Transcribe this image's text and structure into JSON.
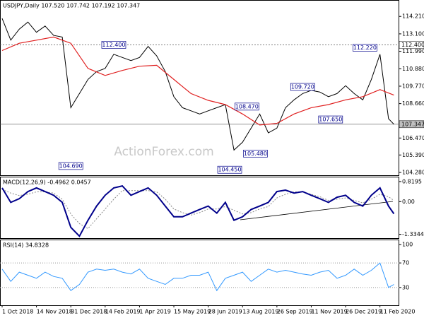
{
  "chart_data": [
    {
      "type": "line",
      "title": "USDJPY,Daily  107.520 107.742 107.192 107.347",
      "watermark": "ActionForex.com",
      "x": [
        0,
        8,
        16,
        24,
        32,
        40,
        48,
        56,
        64,
        72,
        80,
        88,
        96,
        104,
        112,
        120,
        128,
        136,
        144,
        152,
        160,
        168,
        176,
        184,
        192,
        200,
        208,
        216,
        224,
        232,
        240,
        248,
        256,
        264,
        272,
        280,
        288,
        296,
        304,
        312,
        320,
        328,
        336,
        344,
        352,
        360,
        365
      ],
      "xlim": [
        0,
        370
      ],
      "ylim": [
        104.1,
        115.21
      ],
      "yticks": [
        {
          "value": 114.21,
          "label": "114.210"
        },
        {
          "value": 113.1,
          "label": "113.100"
        },
        {
          "value": 111.99,
          "label": "111.990"
        },
        {
          "value": 110.88,
          "label": "110.880"
        },
        {
          "value": 109.77,
          "label": "109.770"
        },
        {
          "value": 108.66,
          "label": "108.660"
        },
        {
          "value": 106.47,
          "label": "106.470"
        },
        {
          "value": 105.39,
          "label": "105.390"
        },
        {
          "value": 104.28,
          "label": "104.280"
        }
      ],
      "hlines": [
        {
          "value": 112.4,
          "label": "112.400",
          "dashed": true
        },
        {
          "value": 107.347,
          "label": "107.347",
          "dashed": false
        }
      ],
      "annotations": [
        {
          "x": 104,
          "value": 112.4,
          "label": "112.400"
        },
        {
          "x": 64,
          "value": 104.69,
          "label": "104.690"
        },
        {
          "x": 228,
          "value": 108.47,
          "label": "108.470"
        },
        {
          "x": 236,
          "value": 105.48,
          "label": "105.480"
        },
        {
          "x": 212,
          "value": 104.45,
          "label": "104.450"
        },
        {
          "x": 280,
          "value": 109.72,
          "label": "109.720"
        },
        {
          "x": 306,
          "value": 107.65,
          "label": "107.650"
        },
        {
          "x": 338,
          "value": 112.22,
          "label": "112.220"
        }
      ],
      "series": [
        {
          "color": "#000000",
          "width": 1,
          "values": [
            114.08,
            112.7,
            113.4,
            113.85,
            113.2,
            113.6,
            113.0,
            112.9,
            108.4,
            109.3,
            110.2,
            110.7,
            110.9,
            111.8,
            111.6,
            111.4,
            111.6,
            112.3,
            111.7,
            110.7,
            109.1,
            108.4,
            108.2,
            108.0,
            108.2,
            108.4,
            108.6,
            105.7,
            106.2,
            107.1,
            108.0,
            106.8,
            107.1,
            108.4,
            108.9,
            109.3,
            109.5,
            109.4,
            109.1,
            109.3,
            109.8,
            109.3,
            108.9,
            110.2,
            111.8,
            107.7,
            107.347
          ]
        },
        {
          "color": "#e02020",
          "width": 1.2,
          "values": [
            112.04,
            null,
            112.5,
            null,
            112.7,
            null,
            112.9,
            null,
            112.5,
            null,
            110.9,
            null,
            110.45,
            null,
            110.77,
            null,
            111.04,
            null,
            111.1,
            null,
            110.2,
            null,
            109.3,
            null,
            108.87,
            null,
            108.6,
            null,
            108.0,
            null,
            107.3,
            null,
            107.4,
            null,
            108.0,
            null,
            108.4,
            null,
            108.6,
            null,
            108.9,
            null,
            109.1,
            null,
            109.55,
            null,
            109.2
          ],
          "connect_gaps": true
        }
      ]
    },
    {
      "type": "line",
      "title": "MACD(12,26,9) -0.4962 0.0457",
      "x": [
        0,
        8,
        16,
        24,
        32,
        40,
        48,
        56,
        64,
        72,
        80,
        88,
        96,
        104,
        112,
        120,
        128,
        136,
        144,
        152,
        160,
        168,
        176,
        184,
        192,
        200,
        208,
        216,
        224,
        232,
        240,
        248,
        256,
        264,
        272,
        280,
        288,
        296,
        304,
        312,
        320,
        328,
        336,
        344,
        352,
        360,
        365
      ],
      "xlim": [
        0,
        370
      ],
      "ylim": [
        -1.49,
        0.99
      ],
      "yticks": [
        {
          "value": 0.8195,
          "label": "0.8195"
        },
        {
          "value": 0,
          "label": "0.00"
        },
        {
          "value": -1.3344,
          "label": "-1.3344"
        }
      ],
      "series": [
        {
          "color": "#888888",
          "width": 1,
          "dashed": true,
          "values": [
            0.5,
            0.35,
            0.25,
            0.3,
            0.4,
            0.4,
            0.35,
            0.1,
            -0.5,
            -0.9,
            -1.1,
            -0.7,
            -0.3,
            0.1,
            0.45,
            0.45,
            0.45,
            0.45,
            0.4,
            0.1,
            -0.3,
            -0.45,
            -0.55,
            -0.45,
            -0.3,
            -0.3,
            -0.2,
            -0.35,
            -0.5,
            -0.45,
            -0.3,
            -0.2,
            0.15,
            0.3,
            0.4,
            0.4,
            0.3,
            0.2,
            0.05,
            0.1,
            0.15,
            0.05,
            -0.05,
            0.1,
            0.3,
            0.2,
            0.0457
          ]
        },
        {
          "color": "#00008b",
          "width": 2,
          "values": [
            0.56,
            -0.03,
            0.12,
            0.41,
            0.56,
            0.41,
            0.26,
            -0.03,
            -1.05,
            -1.41,
            -0.76,
            -0.18,
            0.26,
            0.56,
            0.64,
            0.26,
            0.41,
            0.56,
            0.26,
            -0.18,
            -0.62,
            -0.62,
            -0.47,
            -0.32,
            -0.18,
            -0.47,
            -0.03,
            -0.76,
            -0.62,
            -0.32,
            -0.18,
            -0.03,
            0.41,
            0.47,
            0.35,
            0.41,
            0.26,
            0.12,
            -0.03,
            0.18,
            0.26,
            -0.03,
            -0.18,
            0.26,
            0.56,
            -0.18,
            -0.4962
          ]
        }
      ]
    },
    {
      "type": "line",
      "title": "RSI(14) 34.8328",
      "x": [
        0,
        8,
        16,
        24,
        32,
        40,
        48,
        56,
        64,
        72,
        80,
        88,
        96,
        104,
        112,
        120,
        128,
        136,
        144,
        152,
        160,
        168,
        176,
        184,
        192,
        200,
        208,
        216,
        224,
        232,
        240,
        248,
        256,
        264,
        272,
        280,
        288,
        296,
        304,
        312,
        320,
        328,
        336,
        344,
        352,
        360,
        365
      ],
      "xlim": [
        0,
        370
      ],
      "ylim": [
        1,
        107
      ],
      "yticks": [
        100,
        70,
        30
      ],
      "levels": [
        70,
        30
      ],
      "xticks": [
        {
          "value": 0,
          "label": "1 Oct 2018"
        },
        {
          "value": 32,
          "label": "14 Nov 2018"
        },
        {
          "value": 64,
          "label": "31 Dec 2018"
        },
        {
          "value": 96,
          "label": "14 Feb 2019"
        },
        {
          "value": 128,
          "label": "1 Apr 2019"
        },
        {
          "value": 160,
          "label": "15 May 2019"
        },
        {
          "value": 192,
          "label": "28 Jun 2019"
        },
        {
          "value": 224,
          "label": "13 Aug 2019"
        },
        {
          "value": 256,
          "label": "26 Sep 2019"
        },
        {
          "value": 288,
          "label": "11 Nov 2019"
        },
        {
          "value": 320,
          "label": "26 Dec 2019"
        },
        {
          "value": 352,
          "label": "11 Feb 2020"
        }
      ],
      "series": [
        {
          "color": "#3399ff",
          "width": 1,
          "values": [
            60,
            40,
            55,
            50,
            45,
            55,
            48,
            45,
            25,
            35,
            55,
            60,
            58,
            60,
            55,
            52,
            60,
            45,
            40,
            35,
            45,
            45,
            50,
            50,
            55,
            25,
            45,
            50,
            55,
            40,
            50,
            60,
            55,
            58,
            55,
            52,
            50,
            55,
            58,
            45,
            50,
            60,
            50,
            58,
            70,
            30,
            34.8328
          ]
        }
      ]
    }
  ]
}
